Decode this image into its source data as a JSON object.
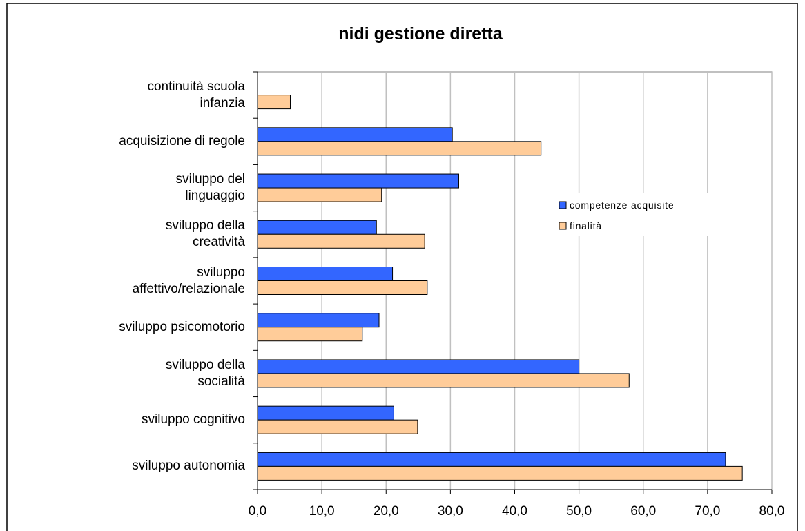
{
  "chart_data": {
    "type": "bar",
    "orientation": "horizontal",
    "title": "nidi gestione diretta",
    "categories": [
      "continuità scuola\ninfanzia",
      "acquisizione di regole",
      "sviluppo del\nlinguaggio",
      "sviluppo della\ncreatività",
      "sviluppo\naffettivo/relazionale",
      "sviluppo psicomotorio",
      "sviluppo della\nsocialità",
      "sviluppo cognitivo",
      "sviluppo autonomia"
    ],
    "series": [
      {
        "name": "competenze acquisite",
        "color": "#3366ff",
        "values": [
          null,
          30.3,
          31.3,
          18.5,
          21.0,
          18.9,
          50.0,
          21.2,
          72.8
        ]
      },
      {
        "name": "finalità",
        "color": "#ffcc99",
        "values": [
          5.1,
          44.1,
          19.3,
          26.0,
          26.4,
          16.3,
          57.8,
          24.9,
          75.4
        ]
      }
    ],
    "xlim": [
      0,
      80
    ],
    "xticks": [
      {
        "value": 0,
        "label": "0,0"
      },
      {
        "value": 10,
        "label": "10,0"
      },
      {
        "value": 20,
        "label": "20,0"
      },
      {
        "value": 30,
        "label": "30,0"
      },
      {
        "value": 40,
        "label": "40,0"
      },
      {
        "value": 50,
        "label": "50,0"
      },
      {
        "value": 60,
        "label": "60,0"
      },
      {
        "value": 70,
        "label": "70,0"
      },
      {
        "value": 80,
        "label": "80,0"
      }
    ],
    "grid": true
  }
}
